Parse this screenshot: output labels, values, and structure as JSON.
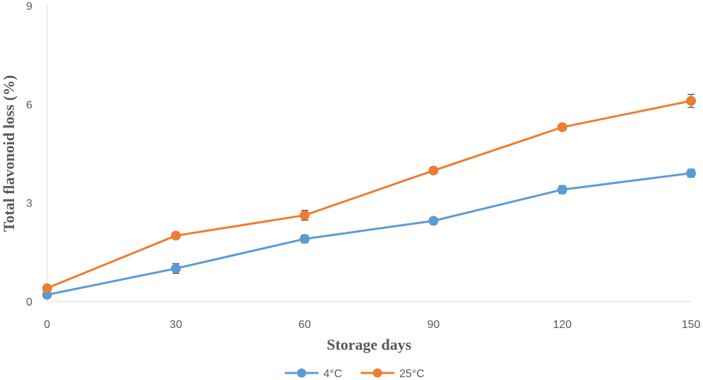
{
  "chart_data": {
    "type": "line",
    "title": "",
    "xlabel": "Storage days",
    "ylabel": "Total flavonoid  loss (%)",
    "x": [
      0,
      30,
      60,
      90,
      120,
      150
    ],
    "xlim": [
      0,
      150
    ],
    "ylim": [
      0,
      9
    ],
    "xticks": [
      "0",
      "30",
      "60",
      "90",
      "120",
      "150"
    ],
    "yticks": [
      "0",
      "3",
      "6",
      "9"
    ],
    "grid": false,
    "legend_position": "bottom",
    "series": [
      {
        "name": "4°C",
        "color": "#5B9BD5",
        "values": [
          0.2,
          1.0,
          1.9,
          2.45,
          3.4,
          3.9
        ],
        "errors": [
          0.05,
          0.15,
          0.12,
          0.1,
          0.12,
          0.12
        ]
      },
      {
        "name": "25°C",
        "color": "#ED7D31",
        "values": [
          0.4,
          2.0,
          2.62,
          3.98,
          5.3,
          6.1
        ],
        "errors": [
          0.05,
          0.1,
          0.15,
          0.08,
          0.1,
          0.2
        ]
      }
    ]
  }
}
